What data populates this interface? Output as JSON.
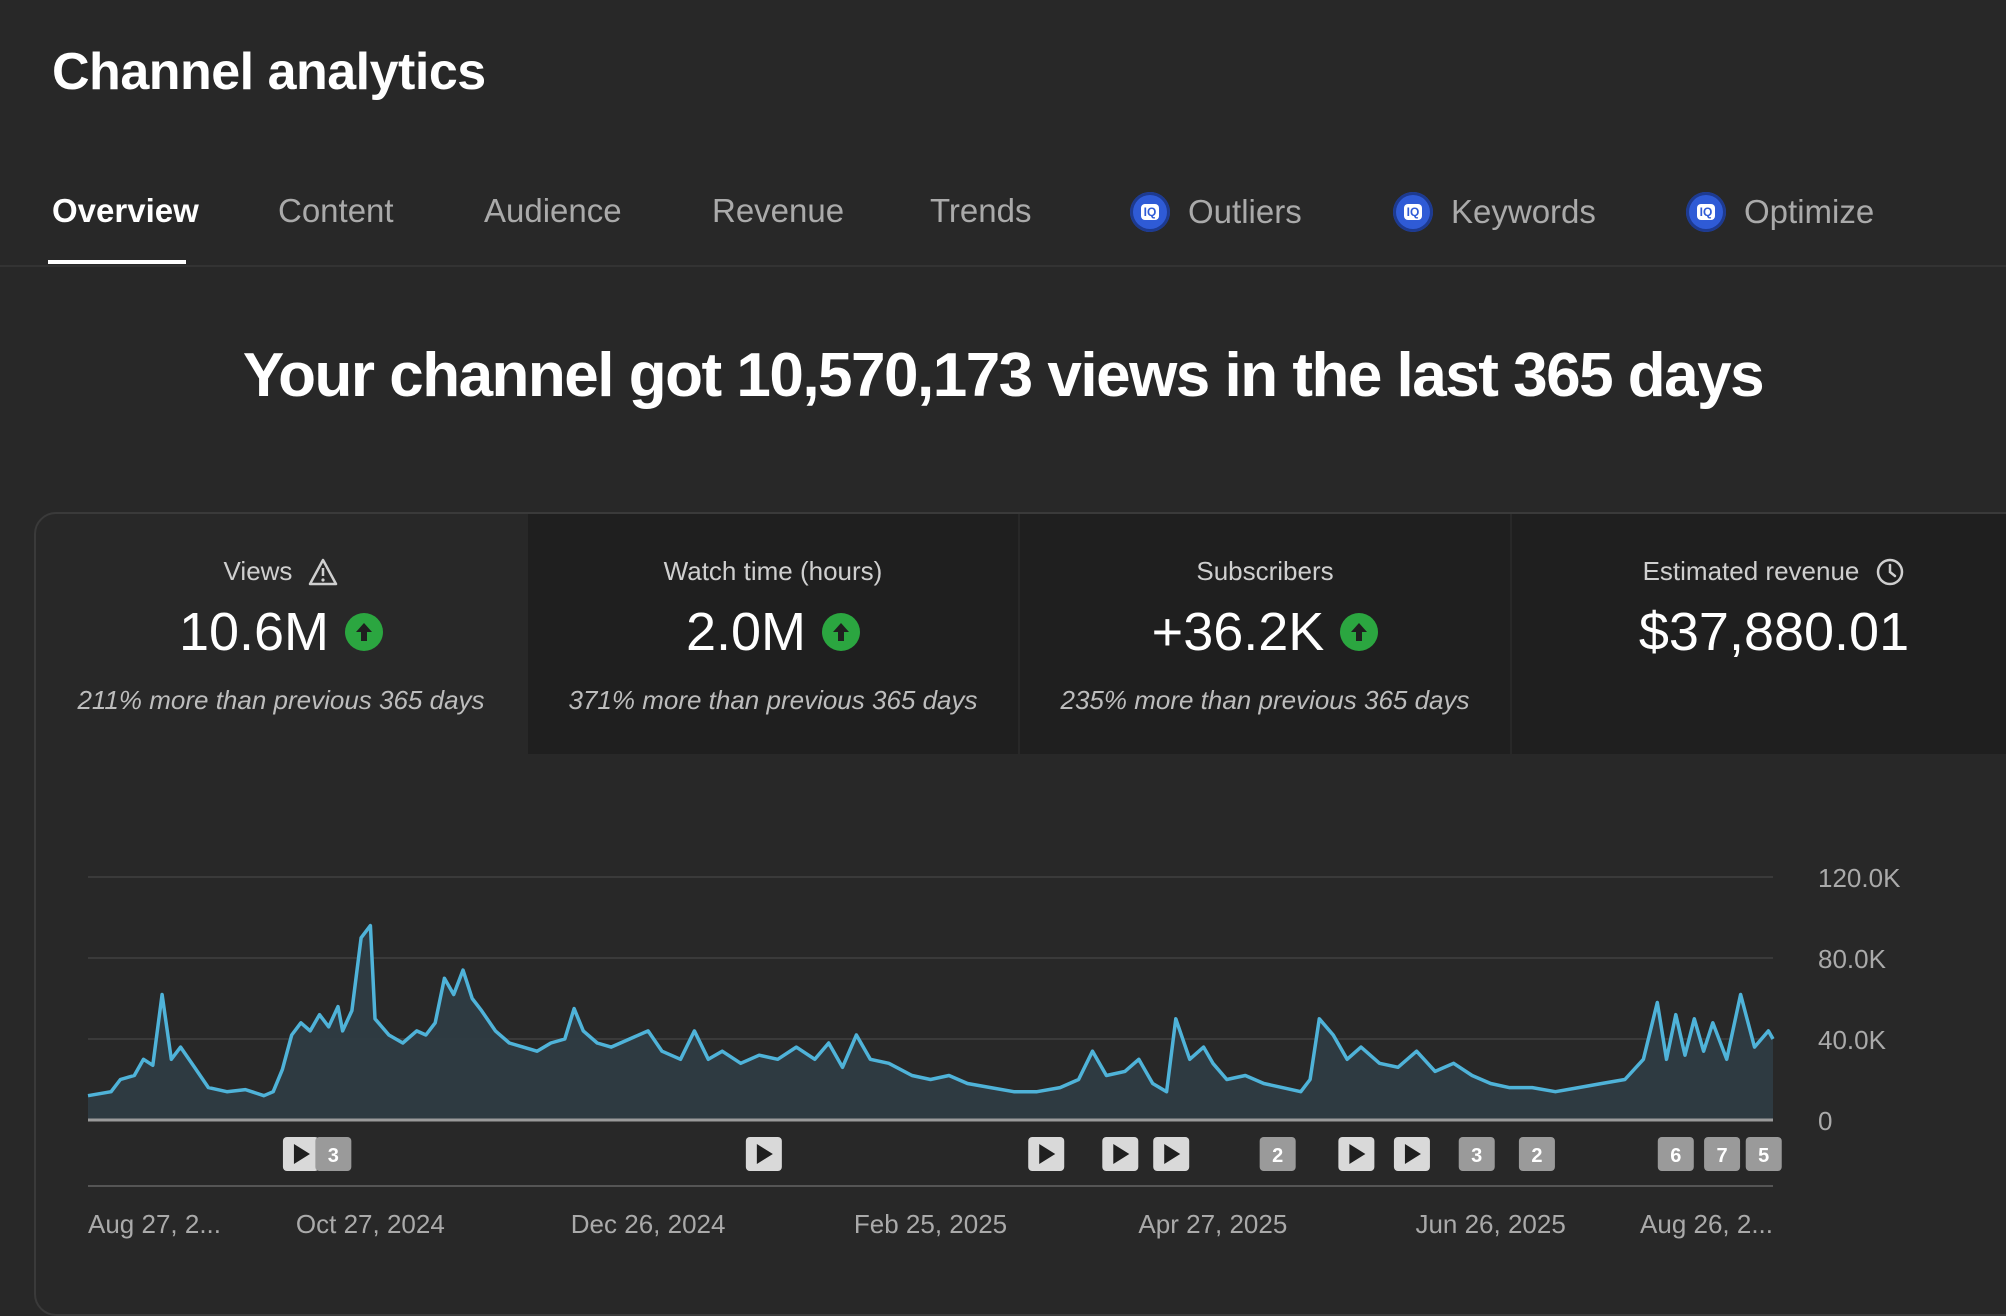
{
  "header": {
    "title": "Channel analytics"
  },
  "tabs": [
    {
      "label": "Overview",
      "active": true
    },
    {
      "label": "Content"
    },
    {
      "label": "Audience"
    },
    {
      "label": "Revenue"
    },
    {
      "label": "Trends"
    },
    {
      "label": "Outliers",
      "icon": "vidiq-badge-icon"
    },
    {
      "label": "Keywords",
      "icon": "vidiq-badge-icon"
    },
    {
      "label": "Optimize",
      "icon": "vidiq-badge-icon"
    }
  ],
  "badge_text": "IQ",
  "headline": "Your channel got 10,570,173 views in the last 365 days",
  "metrics": [
    {
      "label": "Views",
      "value": "10.6M",
      "note": "211% more than previous 365 days",
      "icon": "warning-icon",
      "trend": "up"
    },
    {
      "label": "Watch time (hours)",
      "value": "2.0M",
      "note": "371% more than previous 365 days",
      "trend": "up"
    },
    {
      "label": "Subscribers",
      "value": "+36.2K",
      "note": "235% more than previous 365 days",
      "trend": "up"
    },
    {
      "label": "Estimated revenue",
      "value": "$37,880.01",
      "icon": "clock-icon"
    }
  ],
  "colors": {
    "line": "#4fb3d9",
    "fill": "#2f3c44",
    "up": "#2ba640",
    "badge": "#2f5bd6"
  },
  "chart_data": {
    "type": "area",
    "series_name": "Views",
    "y_ticks": [
      "120.0K",
      "80.0K",
      "40.0K",
      "0"
    ],
    "y_tick_values": [
      120000,
      80000,
      40000,
      0
    ],
    "ylim": [
      0,
      120000
    ],
    "x_tick_labels": [
      "Aug 27, 2...",
      "Oct 27, 2024",
      "Dec 26, 2024",
      "Feb 25, 2025",
      "Apr 27, 2025",
      "Jun 26, 2025",
      "Aug 26, 2..."
    ],
    "x_tick_dates": [
      "2024-08-27",
      "2024-10-27",
      "2024-12-26",
      "2025-02-25",
      "2025-04-27",
      "2025-06-26",
      "2025-08-26"
    ],
    "points": [
      [
        "2024-08-27",
        12000
      ],
      [
        "2024-09-01",
        14000
      ],
      [
        "2024-09-03",
        20000
      ],
      [
        "2024-09-06",
        22000
      ],
      [
        "2024-09-08",
        30000
      ],
      [
        "2024-09-10",
        27000
      ],
      [
        "2024-09-12",
        62000
      ],
      [
        "2024-09-14",
        30000
      ],
      [
        "2024-09-16",
        36000
      ],
      [
        "2024-09-19",
        26000
      ],
      [
        "2024-09-22",
        16000
      ],
      [
        "2024-09-26",
        14000
      ],
      [
        "2024-09-30",
        15000
      ],
      [
        "2024-10-04",
        12000
      ],
      [
        "2024-10-06",
        14000
      ],
      [
        "2024-10-08",
        25000
      ],
      [
        "2024-10-10",
        42000
      ],
      [
        "2024-10-12",
        48000
      ],
      [
        "2024-10-14",
        44000
      ],
      [
        "2024-10-16",
        52000
      ],
      [
        "2024-10-18",
        46000
      ],
      [
        "2024-10-20",
        56000
      ],
      [
        "2024-10-21",
        44000
      ],
      [
        "2024-10-23",
        54000
      ],
      [
        "2024-10-25",
        90000
      ],
      [
        "2024-10-27",
        96000
      ],
      [
        "2024-10-28",
        50000
      ],
      [
        "2024-10-31",
        42000
      ],
      [
        "2024-11-03",
        38000
      ],
      [
        "2024-11-06",
        44000
      ],
      [
        "2024-11-08",
        42000
      ],
      [
        "2024-11-10",
        48000
      ],
      [
        "2024-11-12",
        70000
      ],
      [
        "2024-11-14",
        62000
      ],
      [
        "2024-11-16",
        74000
      ],
      [
        "2024-11-18",
        60000
      ],
      [
        "2024-11-20",
        54000
      ],
      [
        "2024-11-23",
        44000
      ],
      [
        "2024-11-26",
        38000
      ],
      [
        "2024-11-29",
        36000
      ],
      [
        "2024-12-02",
        34000
      ],
      [
        "2024-12-05",
        38000
      ],
      [
        "2024-12-08",
        40000
      ],
      [
        "2024-12-10",
        55000
      ],
      [
        "2024-12-12",
        44000
      ],
      [
        "2024-12-15",
        38000
      ],
      [
        "2024-12-18",
        36000
      ],
      [
        "2024-12-22",
        40000
      ],
      [
        "2024-12-26",
        44000
      ],
      [
        "2024-12-29",
        34000
      ],
      [
        "2025-01-02",
        30000
      ],
      [
        "2025-01-05",
        44000
      ],
      [
        "2025-01-08",
        30000
      ],
      [
        "2025-01-11",
        34000
      ],
      [
        "2025-01-15",
        28000
      ],
      [
        "2025-01-19",
        32000
      ],
      [
        "2025-01-23",
        30000
      ],
      [
        "2025-01-27",
        36000
      ],
      [
        "2025-01-31",
        30000
      ],
      [
        "2025-02-03",
        38000
      ],
      [
        "2025-02-06",
        26000
      ],
      [
        "2025-02-09",
        42000
      ],
      [
        "2025-02-12",
        30000
      ],
      [
        "2025-02-16",
        28000
      ],
      [
        "2025-02-21",
        22000
      ],
      [
        "2025-02-25",
        20000
      ],
      [
        "2025-03-01",
        22000
      ],
      [
        "2025-03-05",
        18000
      ],
      [
        "2025-03-10",
        16000
      ],
      [
        "2025-03-15",
        14000
      ],
      [
        "2025-03-20",
        14000
      ],
      [
        "2025-03-25",
        16000
      ],
      [
        "2025-03-29",
        20000
      ],
      [
        "2025-04-01",
        34000
      ],
      [
        "2025-04-04",
        22000
      ],
      [
        "2025-04-08",
        24000
      ],
      [
        "2025-04-11",
        30000
      ],
      [
        "2025-04-14",
        18000
      ],
      [
        "2025-04-17",
        14000
      ],
      [
        "2025-04-19",
        50000
      ],
      [
        "2025-04-22",
        30000
      ],
      [
        "2025-04-25",
        36000
      ],
      [
        "2025-04-27",
        28000
      ],
      [
        "2025-04-30",
        20000
      ],
      [
        "2025-05-04",
        22000
      ],
      [
        "2025-05-08",
        18000
      ],
      [
        "2025-05-12",
        16000
      ],
      [
        "2025-05-16",
        14000
      ],
      [
        "2025-05-18",
        20000
      ],
      [
        "2025-05-20",
        50000
      ],
      [
        "2025-05-23",
        42000
      ],
      [
        "2025-05-26",
        30000
      ],
      [
        "2025-05-29",
        36000
      ],
      [
        "2025-06-02",
        28000
      ],
      [
        "2025-06-06",
        26000
      ],
      [
        "2025-06-10",
        34000
      ],
      [
        "2025-06-14",
        24000
      ],
      [
        "2025-06-18",
        28000
      ],
      [
        "2025-06-22",
        22000
      ],
      [
        "2025-06-26",
        18000
      ],
      [
        "2025-06-30",
        16000
      ],
      [
        "2025-07-05",
        16000
      ],
      [
        "2025-07-10",
        14000
      ],
      [
        "2025-07-15",
        16000
      ],
      [
        "2025-07-20",
        18000
      ],
      [
        "2025-07-25",
        20000
      ],
      [
        "2025-07-29",
        30000
      ],
      [
        "2025-08-01",
        58000
      ],
      [
        "2025-08-03",
        30000
      ],
      [
        "2025-08-05",
        52000
      ],
      [
        "2025-08-07",
        32000
      ],
      [
        "2025-08-09",
        50000
      ],
      [
        "2025-08-11",
        34000
      ],
      [
        "2025-08-13",
        48000
      ],
      [
        "2025-08-16",
        30000
      ],
      [
        "2025-08-19",
        62000
      ],
      [
        "2025-08-22",
        36000
      ],
      [
        "2025-08-25",
        44000
      ],
      [
        "2025-08-26",
        40000
      ]
    ],
    "annotations": [
      {
        "date": "2024-10-12",
        "type": "video"
      },
      {
        "date": "2024-10-19",
        "type": "count",
        "label": "3"
      },
      {
        "date": "2025-01-20",
        "type": "video"
      },
      {
        "date": "2025-03-22",
        "type": "video"
      },
      {
        "date": "2025-04-07",
        "type": "video"
      },
      {
        "date": "2025-04-18",
        "type": "video"
      },
      {
        "date": "2025-05-11",
        "type": "count",
        "label": "2"
      },
      {
        "date": "2025-05-28",
        "type": "video"
      },
      {
        "date": "2025-06-09",
        "type": "video"
      },
      {
        "date": "2025-06-23",
        "type": "count",
        "label": "3"
      },
      {
        "date": "2025-07-06",
        "type": "count",
        "label": "2"
      },
      {
        "date": "2025-08-05",
        "type": "count",
        "label": "6"
      },
      {
        "date": "2025-08-15",
        "type": "count",
        "label": "7"
      },
      {
        "date": "2025-08-24",
        "type": "count",
        "label": "5"
      }
    ]
  }
}
